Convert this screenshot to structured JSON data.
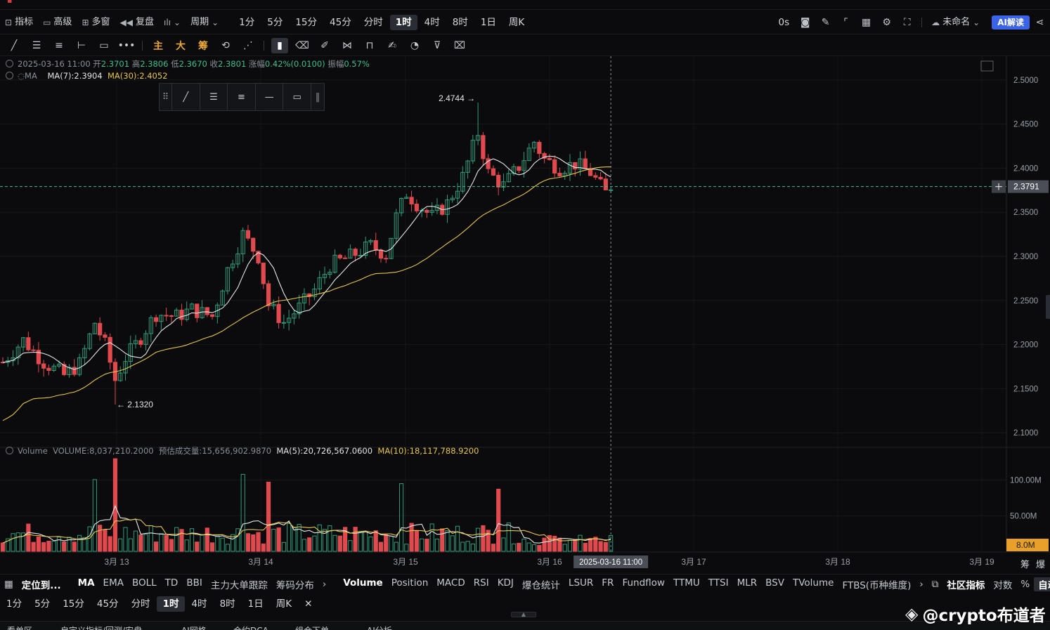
{
  "toolbar": {
    "indicators_label": "指标",
    "advanced_label": "高级",
    "multiwindow_label": "多窗",
    "replay_label": "复盘",
    "period_label": "周期",
    "intervals": [
      "1分",
      "5分",
      "15分",
      "45分",
      "分时",
      "1时",
      "4时",
      "8时",
      "1日",
      "周K"
    ],
    "active_interval": "1时",
    "countdown": "0s",
    "layout_name": "未命名",
    "ai_label": "AI解读"
  },
  "drawing_tools": {
    "main_label": "主",
    "big_label": "大",
    "chip_label": "筹"
  },
  "ohlc": {
    "datetime": "2025-03-16 11:00",
    "open_label": "开",
    "open": "2.3701",
    "high_label": "高",
    "high": "2.3806",
    "low_label": "低",
    "low": "2.3670",
    "close_label": "收",
    "close": "2.3801",
    "change_label": "涨幅",
    "change": "0.42%(0.0100)",
    "amplitude_label": "振幅",
    "amplitude": "0.57%"
  },
  "ma": {
    "label": "MA",
    "ma7": "MA(7):2.3904",
    "ma30": "MA(30):2.4052"
  },
  "volume_info": {
    "label": "Volume",
    "volume": "VOLUME:8,037,210.2000",
    "est_label": "预估成交量:15,656,902.9870",
    "ma5": "MA(5):20,726,567.0600",
    "ma10": "MA(10):18,117,788.9200"
  },
  "chart_data": {
    "type": "candlestick",
    "price_axis": [
      "2.5000",
      "2.4500",
      "2.4000",
      "2.3500",
      "2.3000",
      "2.2500",
      "2.2000",
      "2.1500",
      "2.1000"
    ],
    "price_range": [
      2.085,
      2.515
    ],
    "volume_axis": [
      "100.00M",
      "50.00M"
    ],
    "volume_max": 135,
    "current_price": "2.3791",
    "current_volume": "8.0M",
    "high_marker": "2.4744",
    "low_marker": "2.1320",
    "date_labels": [
      "3月 13",
      "3月 14",
      "3月 15",
      "3月 16",
      "3月 17",
      "3月 18",
      "3月 19"
    ],
    "crosshair_time": "2025-03-16 11:00",
    "up_color": "#2e9e7a",
    "down_color": "#e04a4f",
    "ma7_color": "#e6e6e6",
    "ma30_color": "#e6c54a"
  },
  "indicators_bar": {
    "locate_label": "定位到...",
    "main_items": [
      "MA",
      "EMA",
      "BOLL",
      "TD",
      "BBI",
      "主力大单跟踪",
      "筹码分布"
    ],
    "sub_items": [
      "Volume",
      "Position",
      "MACD",
      "RSI",
      "KDJ",
      "爆仓统计",
      "LSUR",
      "FR",
      "Fundflow",
      "TTMU",
      "TTSI",
      "MLR",
      "BSV",
      "TVolume",
      "FTBS(币种维度)"
    ],
    "community_label": "社区指标",
    "log_label": "对数",
    "percent_label": "%",
    "auto_label": "自动"
  },
  "interval_bar": [
    "1分",
    "5分",
    "15分",
    "45分",
    "分时",
    "1时",
    "4时",
    "8时",
    "1日",
    "周K"
  ],
  "bottom_tabs": [
    "看单区",
    "自定义指标/回测/安盘",
    "AI网格",
    "合约DCA",
    "组合下单",
    "AI分析"
  ],
  "right_corner": {
    "chip_label": "筹",
    "burst_label": "爆"
  },
  "watermark": "@crypto布道者"
}
